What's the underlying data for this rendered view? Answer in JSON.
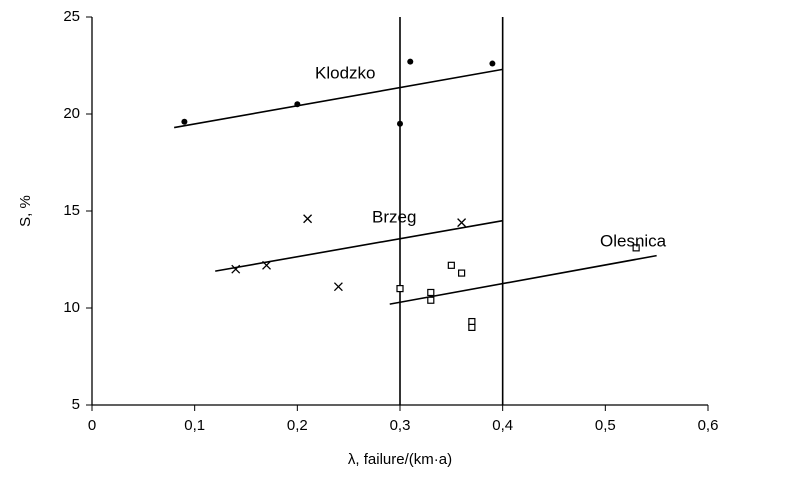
{
  "chart_data": {
    "type": "scatter",
    "x_label": "λ, failure/(km·a)",
    "y_label": "S, %",
    "xlim": [
      0,
      0.6
    ],
    "ylim": [
      5,
      25
    ],
    "xticks": [
      0,
      {
        "value": 0.1,
        "label": "0,1"
      },
      {
        "value": 0.2,
        "label": "0,2"
      },
      {
        "value": 0.3,
        "label": "0,3"
      },
      {
        "value": 0.4,
        "label": "0,4"
      },
      {
        "value": 0.5,
        "label": "0,5"
      },
      {
        "value": 0.6,
        "label": "0,6"
      }
    ],
    "yticks": [
      5,
      10,
      15,
      20,
      25
    ],
    "vlines": [
      0.3,
      0.4
    ],
    "series": [
      {
        "name": "Klodzko",
        "marker": "circle",
        "color": "#000000",
        "x": [
          0.09,
          0.2,
          0.3,
          0.31,
          0.39
        ],
        "values": [
          19.6,
          20.5,
          19.5,
          22.7,
          22.6
        ],
        "trend": {
          "x": [
            0.08,
            0.4
          ],
          "values": [
            19.3,
            22.3
          ]
        }
      },
      {
        "name": "Brzeg",
        "marker": "cross",
        "color": "#000000",
        "x": [
          0.14,
          0.17,
          0.21,
          0.24,
          0.36
        ],
        "values": [
          12.0,
          12.2,
          14.6,
          11.1,
          14.4
        ],
        "trend": {
          "x": [
            0.12,
            0.4
          ],
          "values": [
            11.9,
            14.5
          ]
        }
      },
      {
        "name": "Olesnica",
        "marker": "square",
        "color": "#000000",
        "x": [
          0.3,
          0.33,
          0.33,
          0.35,
          0.36,
          0.37,
          0.37,
          0.53
        ],
        "values": [
          11.0,
          10.8,
          10.4,
          12.2,
          11.8,
          9.3,
          9.0,
          13.1
        ],
        "trend": {
          "x": [
            0.29,
            0.55
          ],
          "values": [
            10.2,
            12.7
          ]
        }
      }
    ]
  }
}
